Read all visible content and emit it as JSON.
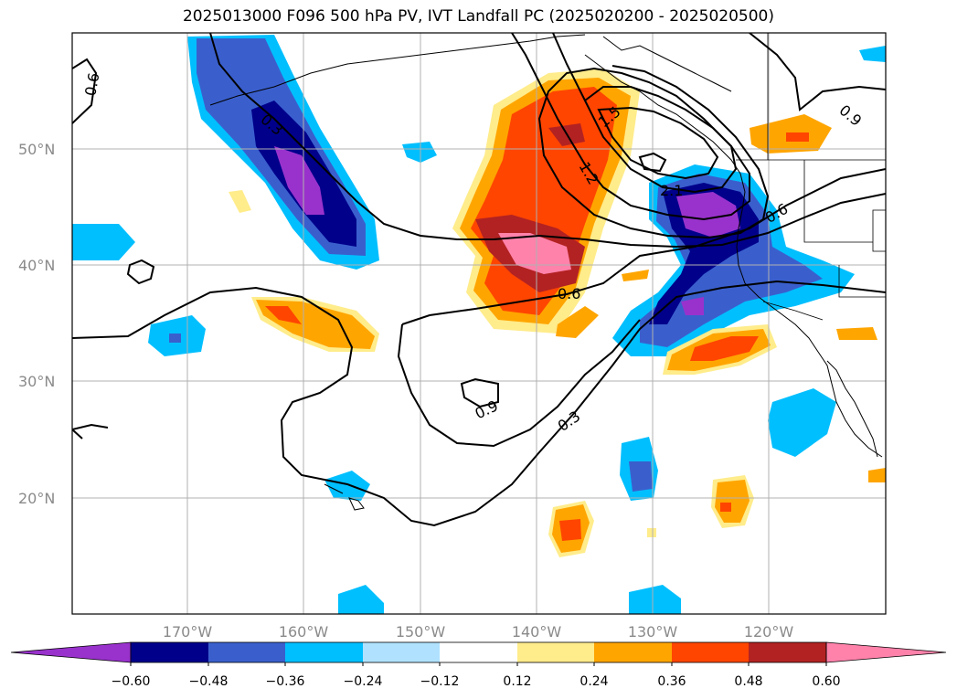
{
  "title": "2025013000 F096 500 hPa PV, IVT Landfall PC (2025020200 - 2025020500)",
  "map": {
    "lat_labels": [
      "50°N",
      "40°N",
      "30°N",
      "20°N"
    ],
    "lon_labels": [
      "170°W",
      "160°W",
      "150°W",
      "140°W",
      "130°W",
      "120°W"
    ],
    "contour_labels": [
      "0.6",
      "0.3",
      "1.5",
      "1.2",
      "2.1",
      "0.6",
      "0.9",
      "0.6",
      "0.9",
      "0.3"
    ],
    "extent": {
      "lon": [
        -180,
        -110
      ],
      "lat": [
        10,
        60
      ]
    }
  },
  "colorbar": {
    "tick_labels": [
      "−0.60",
      "−0.48",
      "−0.36",
      "−0.24",
      "−0.12",
      "0.12",
      "0.24",
      "0.36",
      "0.48",
      "0.60"
    ],
    "colors": [
      "#9932cc",
      "#00008b",
      "#3a5fcd",
      "#00bfff",
      "#b0e2ff",
      "#ffffff",
      "#ffec8b",
      "#ffa500",
      "#ff4500",
      "#b22222",
      "#ff82ab"
    ]
  }
}
